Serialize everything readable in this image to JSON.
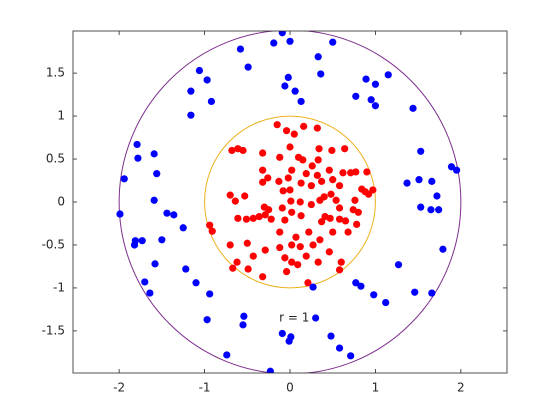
{
  "chart_data": {
    "type": "scatter",
    "xlim": [
      -2.54,
      2.54
    ],
    "ylim": [
      -1.99,
      1.99
    ],
    "xticks": [
      -2,
      -1,
      0,
      1,
      2
    ],
    "yticks": [
      -1.5,
      -1,
      -0.5,
      0,
      0.5,
      1,
      1.5
    ],
    "circles": [
      {
        "r": 1,
        "color": "#edb120"
      },
      {
        "r": 2,
        "color": "#7e2f8e"
      }
    ],
    "annotation": {
      "text": "r = 1",
      "x": 0.05,
      "y": -1.35
    },
    "series": [
      {
        "color": "#ff0000",
        "x": [
          -0.68,
          -0.61,
          -0.55,
          -0.32,
          -0.15,
          -0.04,
          0.05,
          0.16,
          0.32,
          0,
          0.1,
          0.15,
          0.34,
          0.33,
          0.49,
          0.64,
          0.46,
          0.32,
          0.19,
          0.02,
          0.13,
          0.25,
          0.37,
          0.5,
          0.58,
          0.71,
          0.77,
          0.9,
          0.84,
          0.92,
          0.97,
          0.88,
          0.76,
          0.74,
          0.8,
          0.54,
          0.48,
          0.35,
          0.25,
          0.41,
          0.47,
          0.37,
          0.58,
          0.68,
          0.65,
          0.78,
          0.5,
          0.35,
          0.22,
          0.13,
          0.02,
          0.12,
          0,
          -0.08,
          -0.13,
          -0.26,
          -0.32,
          -0.02,
          -0.7,
          -0.64,
          -0.53,
          -0.61,
          -0.51,
          -0.43,
          -0.36,
          -0.29,
          -0.25,
          -0.22,
          -0.06,
          -0.12,
          -0.91,
          -0.94,
          -0.7,
          -0.5,
          -0.62,
          -0.67,
          -0.49,
          -0.32,
          -0.43,
          -0.29,
          -0.12,
          -0.06,
          0.02,
          -0.04,
          0.09,
          0.12,
          0.19,
          0.27,
          0.33,
          0.46,
          0.6,
          0.58,
          0.21,
          0.02,
          0.07,
          -0.3,
          -0.09,
          0.01,
          0.26,
          -0.12,
          0.62,
          -0.32,
          0.58,
          0.4
        ],
        "y": [
          0.6,
          0.62,
          0.6,
          0.57,
          0.9,
          0.83,
          0.79,
          0.88,
          0.86,
          0.64,
          0.52,
          0.49,
          0.62,
          0.49,
          0.6,
          0.62,
          0.37,
          0.31,
          0.33,
          0.37,
          0.22,
          0.19,
          0.24,
          0.26,
          0.19,
          0.34,
          0.35,
          0.35,
          0.15,
          0.09,
          0.14,
          0.12,
          0.02,
          -0.09,
          -0.12,
          0.02,
          0.09,
          0.02,
          -0.03,
          -0.17,
          -0.19,
          -0.23,
          -0.2,
          -0.35,
          -0.22,
          -0.26,
          -0.35,
          -0.44,
          -0.35,
          -0.16,
          -0.12,
          0,
          0.14,
          0.13,
          0.24,
          0.28,
          0.23,
          0.28,
          0.08,
          0.01,
          0.07,
          -0.19,
          -0.2,
          -0.19,
          -0.17,
          -0.15,
          -0.09,
          -0.2,
          -0.21,
          -0.35,
          -0.34,
          -0.27,
          -0.5,
          -0.48,
          -0.7,
          -0.77,
          -0.78,
          -0.87,
          -0.63,
          -0.56,
          -0.53,
          -0.65,
          -0.7,
          -0.81,
          -0.73,
          -0.52,
          -0.63,
          -0.5,
          -0.7,
          -0.58,
          -0.7,
          -0.79,
          -0.94,
          -0.5,
          -0.41,
          -0.06,
          -0.07,
          0.01,
          0.42,
          0.52,
          0.34,
          0.37,
          -0.07,
          0.06
        ]
      },
      {
        "color": "#0000ff",
        "x": [
          -0.09,
          0,
          -0.58,
          -0.19,
          0.5,
          0.33,
          -0.49,
          -1.06,
          -0.97,
          -1.16,
          -0.92,
          -1.16,
          -0.02,
          -0.06,
          0.06,
          0.13,
          0.36,
          0.89,
          1.0,
          0.77,
          0.95,
          1.0,
          1.44,
          1.15,
          -1.79,
          -1.78,
          -1.59,
          -1.94,
          -1.56,
          -1.99,
          -1.59,
          -1.44,
          -1.36,
          -1.25,
          -1.81,
          -1.73,
          -1.5,
          -1.82,
          -1.58,
          -1.22,
          -1.7,
          -1.64,
          -1.1,
          -0.94,
          -0.97,
          -0.54,
          -0.55,
          -0.74,
          -0.23,
          -0.09,
          -0.01,
          0.01,
          0.3,
          0.48,
          0.58,
          0.71,
          0.27,
          0.77,
          0.83,
          0.98,
          1.12,
          1.27,
          1.46,
          1.66,
          1.79,
          1.53,
          1.65,
          1.74,
          1.72,
          1.66,
          1.51,
          1.37,
          1.53,
          1.89,
          1.95
        ],
        "y": [
          1.97,
          1.87,
          1.78,
          1.85,
          1.86,
          1.69,
          1.57,
          1.53,
          1.42,
          1.29,
          1.17,
          1.01,
          1.45,
          1.35,
          1.29,
          1.17,
          1.49,
          1.43,
          1.37,
          1.23,
          1.19,
          1.12,
          1.09,
          1.48,
          0.67,
          0.51,
          0.56,
          0.27,
          0.33,
          -0.14,
          0.02,
          -0.13,
          -0.15,
          -0.3,
          -0.45,
          -0.45,
          -0.44,
          -0.5,
          -0.72,
          -0.78,
          -0.93,
          -1.06,
          -0.94,
          -1.07,
          -1.37,
          -1.33,
          -1.43,
          -1.78,
          -1.97,
          -1.53,
          -1.62,
          -1.57,
          -1.35,
          -1.56,
          -1.7,
          -1.79,
          -0.99,
          -0.94,
          -0.98,
          -1.08,
          -1.17,
          -0.73,
          -1.05,
          -1.06,
          -0.55,
          -0.06,
          -0.09,
          -0.09,
          0.07,
          0.24,
          0.26,
          0.22,
          0.59,
          0.41,
          0.37
        ]
      }
    ]
  }
}
